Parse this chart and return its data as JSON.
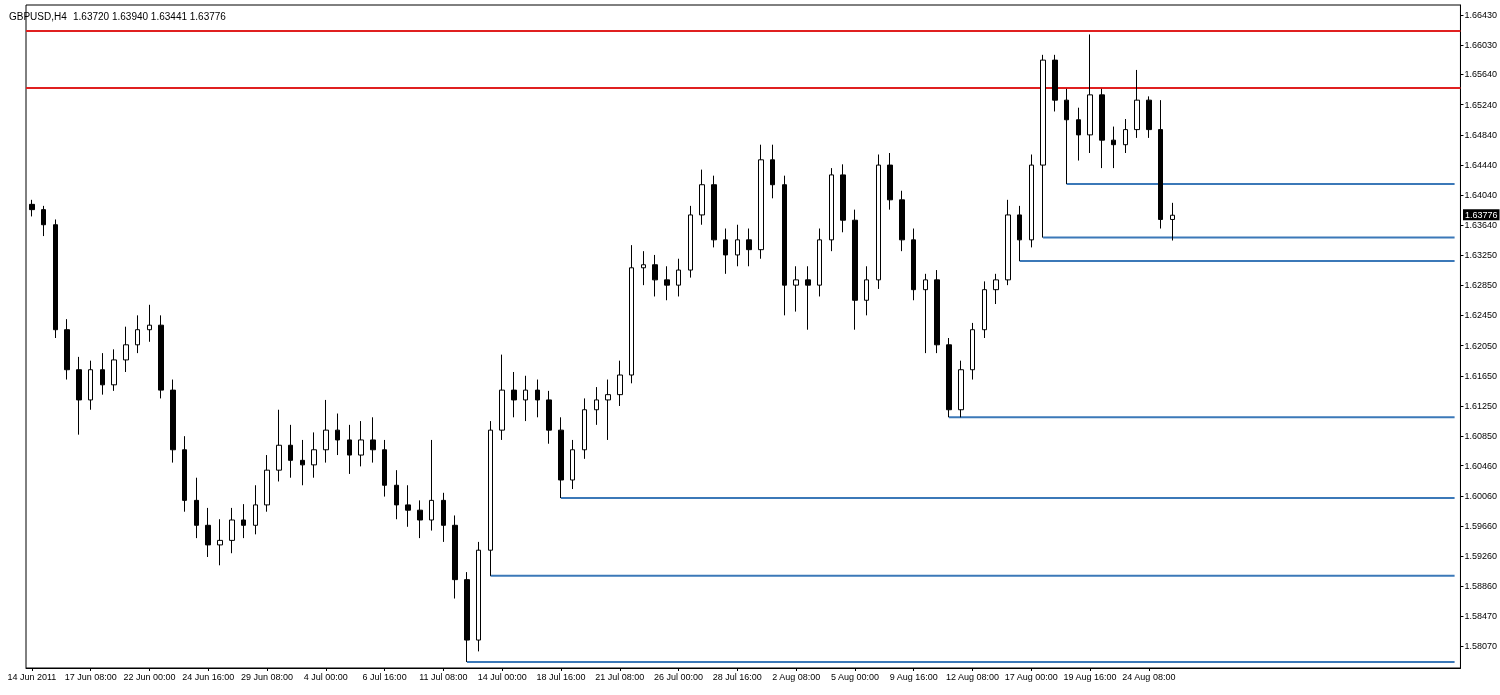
{
  "chart_data": {
    "type": "candlestick",
    "title": "GBPUSD,H4",
    "subtitle": "1.63720 1.63940 1.63441 1.63776",
    "categories": [
      "14 Jun 2011",
      null,
      null,
      null,
      null,
      "17 Jun 08:00",
      null,
      null,
      null,
      null,
      "22 Jun 00:00",
      null,
      null,
      null,
      null,
      "24 Jun 16:00",
      null,
      null,
      null,
      null,
      "29 Jun 08:00",
      null,
      null,
      null,
      null,
      "4 Jul 00:00",
      null,
      null,
      null,
      null,
      "6 Jul 16:00",
      null,
      null,
      null,
      null,
      "11 Jul 08:00",
      null,
      null,
      null,
      null,
      "14 Jul 00:00",
      null,
      null,
      null,
      null,
      "18 Jul 16:00",
      null,
      null,
      null,
      null,
      "21 Jul 08:00",
      null,
      null,
      null,
      null,
      "26 Jul 00:00",
      null,
      null,
      null,
      null,
      "28 Jul 16:00",
      null,
      null,
      null,
      null,
      "2 Aug 08:00",
      null,
      null,
      null,
      null,
      "5 Aug 00:00",
      null,
      null,
      null,
      null,
      "9 Aug 16:00",
      null,
      null,
      null,
      null,
      "12 Aug 08:00",
      null,
      null,
      null,
      null,
      "17 Aug 00:00",
      null,
      null,
      null,
      null,
      "19 Aug 16:00",
      null,
      null,
      null,
      null,
      "24 Aug 08:00",
      null,
      null,
      null,
      null,
      null,
      null,
      null,
      null,
      null,
      null,
      null,
      null,
      null,
      null,
      null,
      null,
      null,
      null,
      null,
      null,
      null,
      null,
      null,
      null,
      null,
      null
    ],
    "ohlc": [
      [
        1.6392,
        1.6398,
        1.6376,
        1.6385
      ],
      [
        1.6385,
        1.639,
        1.635,
        1.6365
      ],
      [
        1.6365,
        1.6372,
        1.6215,
        1.6226
      ],
      [
        1.6226,
        1.624,
        1.616,
        1.6173
      ],
      [
        1.6173,
        1.619,
        1.6087,
        1.6133
      ],
      [
        1.6133,
        1.6185,
        1.612,
        1.6173
      ],
      [
        1.6173,
        1.6195,
        1.614,
        1.6153
      ],
      [
        1.6153,
        1.62,
        1.6145,
        1.6186
      ],
      [
        1.6186,
        1.623,
        1.617,
        1.6206
      ],
      [
        1.6206,
        1.6245,
        1.6195,
        1.6226
      ],
      [
        1.6226,
        1.6259,
        1.621,
        1.6232
      ],
      [
        1.6232,
        1.6245,
        1.6135,
        1.6146
      ],
      [
        1.6146,
        1.616,
        1.605,
        1.6067
      ],
      [
        1.6067,
        1.6085,
        1.5985,
        1.6
      ],
      [
        1.6,
        1.603,
        1.595,
        1.5967
      ],
      [
        1.5967,
        1.599,
        1.5925,
        1.5941
      ],
      [
        1.5941,
        1.5975,
        1.5914,
        1.5947
      ],
      [
        1.5947,
        1.599,
        1.593,
        1.5974
      ],
      [
        1.5974,
        1.5995,
        1.595,
        1.5967
      ],
      [
        1.5967,
        1.602,
        1.5955,
        1.5994
      ],
      [
        1.5994,
        1.606,
        1.5985,
        1.604
      ],
      [
        1.604,
        1.612,
        1.6025,
        1.6073
      ],
      [
        1.6073,
        1.61,
        1.603,
        1.6053
      ],
      [
        1.6053,
        1.608,
        1.602,
        1.6047
      ],
      [
        1.6047,
        1.609,
        1.603,
        1.6067
      ],
      [
        1.6067,
        1.6133,
        1.605,
        1.6093
      ],
      [
        1.6093,
        1.6115,
        1.606,
        1.608
      ],
      [
        1.608,
        1.61,
        1.6035,
        1.606
      ],
      [
        1.606,
        1.6105,
        1.6045,
        1.608
      ],
      [
        1.608,
        1.611,
        1.605,
        1.6067
      ],
      [
        1.6067,
        1.608,
        1.6005,
        1.602
      ],
      [
        1.602,
        1.604,
        1.5975,
        1.5994
      ],
      [
        1.5994,
        1.602,
        1.5965,
        1.5987
      ],
      [
        1.5987,
        1.6,
        1.595,
        1.5974
      ],
      [
        1.5974,
        1.608,
        1.596,
        1.6
      ],
      [
        1.6,
        1.601,
        1.5945,
        1.5967
      ],
      [
        1.5967,
        1.598,
        1.587,
        1.5895
      ],
      [
        1.5895,
        1.5905,
        1.5786,
        1.5815
      ],
      [
        1.5815,
        1.5945,
        1.58,
        1.5934
      ],
      [
        1.5934,
        1.6105,
        1.59,
        1.6093
      ],
      [
        1.6093,
        1.6193,
        1.608,
        1.6146
      ],
      [
        1.6146,
        1.617,
        1.611,
        1.6133
      ],
      [
        1.6133,
        1.6165,
        1.6105,
        1.6146
      ],
      [
        1.6146,
        1.616,
        1.611,
        1.6133
      ],
      [
        1.6133,
        1.6145,
        1.6075,
        1.6093
      ],
      [
        1.6093,
        1.611,
        1.6003,
        1.6027
      ],
      [
        1.6027,
        1.608,
        1.6015,
        1.6067
      ],
      [
        1.6067,
        1.6135,
        1.6055,
        1.612
      ],
      [
        1.612,
        1.615,
        1.61,
        1.6133
      ],
      [
        1.6133,
        1.616,
        1.608,
        1.614
      ],
      [
        1.614,
        1.6185,
        1.6125,
        1.6166
      ],
      [
        1.6166,
        1.6338,
        1.6155,
        1.6308
      ],
      [
        1.6308,
        1.633,
        1.6285,
        1.6312
      ],
      [
        1.6312,
        1.6325,
        1.627,
        1.6292
      ],
      [
        1.6292,
        1.631,
        1.6265,
        1.6285
      ],
      [
        1.6285,
        1.632,
        1.627,
        1.6305
      ],
      [
        1.6305,
        1.639,
        1.6295,
        1.6378
      ],
      [
        1.6378,
        1.6438,
        1.6365,
        1.6418
      ],
      [
        1.6418,
        1.643,
        1.6335,
        1.6345
      ],
      [
        1.6345,
        1.636,
        1.63,
        1.6325
      ],
      [
        1.6325,
        1.6365,
        1.631,
        1.6345
      ],
      [
        1.6345,
        1.636,
        1.631,
        1.6332
      ],
      [
        1.6332,
        1.6471,
        1.632,
        1.6451
      ],
      [
        1.6451,
        1.6471,
        1.64,
        1.6418
      ],
      [
        1.6418,
        1.643,
        1.6245,
        1.6285
      ],
      [
        1.6285,
        1.631,
        1.625,
        1.6292
      ],
      [
        1.6292,
        1.631,
        1.6226,
        1.6285
      ],
      [
        1.6285,
        1.636,
        1.627,
        1.6345
      ],
      [
        1.6345,
        1.644,
        1.633,
        1.6431
      ],
      [
        1.6431,
        1.6445,
        1.6355,
        1.6371
      ],
      [
        1.6371,
        1.6385,
        1.6226,
        1.6265
      ],
      [
        1.6265,
        1.631,
        1.6245,
        1.6292
      ],
      [
        1.6292,
        1.6458,
        1.628,
        1.6444
      ],
      [
        1.6444,
        1.646,
        1.6385,
        1.6398
      ],
      [
        1.6398,
        1.641,
        1.633,
        1.6345
      ],
      [
        1.6345,
        1.636,
        1.6265,
        1.6279
      ],
      [
        1.6279,
        1.63,
        1.6195,
        1.6292
      ],
      [
        1.6292,
        1.6305,
        1.6195,
        1.6206
      ],
      [
        1.6206,
        1.6215,
        1.611,
        1.612
      ],
      [
        1.612,
        1.6185,
        1.611,
        1.6173
      ],
      [
        1.6173,
        1.6235,
        1.616,
        1.6226
      ],
      [
        1.6226,
        1.629,
        1.6215,
        1.6279
      ],
      [
        1.6279,
        1.63,
        1.626,
        1.6292
      ],
      [
        1.6292,
        1.6398,
        1.6285,
        1.6378
      ],
      [
        1.6378,
        1.639,
        1.6317,
        1.6345
      ],
      [
        1.6345,
        1.6458,
        1.6335,
        1.6444
      ],
      [
        1.6444,
        1.659,
        1.6348,
        1.6583
      ],
      [
        1.6583,
        1.659,
        1.6515,
        1.653
      ],
      [
        1.653,
        1.6545,
        1.6419,
        1.6504
      ],
      [
        1.6504,
        1.652,
        1.645,
        1.6484
      ],
      [
        1.6484,
        1.6617,
        1.646,
        1.6537
      ],
      [
        1.6537,
        1.6545,
        1.644,
        1.6477
      ],
      [
        1.6477,
        1.6495,
        1.644,
        1.6471
      ],
      [
        1.6471,
        1.6505,
        1.646,
        1.6491
      ],
      [
        1.6491,
        1.657,
        1.648,
        1.653
      ],
      [
        1.653,
        1.6535,
        1.648,
        1.6491
      ],
      [
        1.6491,
        1.653,
        1.636,
        1.6372
      ],
      [
        1.6372,
        1.6394,
        1.63441,
        1.63776
      ],
      null,
      null,
      null,
      null,
      null,
      null,
      null,
      null,
      null,
      null,
      null,
      null,
      null,
      null,
      null,
      null,
      null,
      null,
      null,
      null,
      null,
      null,
      null,
      null
    ],
    "color": "#000000",
    "series": [
      {
        "type": "line",
        "color": "#3b78b8",
        "values": [
          null,
          null,
          null,
          null,
          null,
          null,
          null,
          null,
          null,
          null,
          null,
          null,
          null,
          null,
          null,
          null,
          null,
          null,
          null,
          null,
          null,
          null,
          null,
          null,
          null,
          null,
          null,
          null,
          null,
          null,
          null,
          null,
          null,
          null,
          null,
          null,
          null,
          1.5786,
          null,
          null,
          null,
          null,
          null,
          null,
          null,
          null,
          null,
          null,
          null,
          null,
          null,
          null,
          null,
          null,
          null,
          null,
          null,
          null,
          null,
          null,
          null,
          null,
          null,
          null,
          null,
          null,
          null,
          null,
          null,
          null,
          null,
          null,
          null,
          null,
          null,
          null,
          null,
          null,
          null,
          null,
          null,
          null,
          null,
          null,
          null,
          null,
          null,
          null,
          null,
          null,
          null,
          null,
          null,
          null,
          null,
          null,
          null,
          null,
          null,
          null,
          null,
          null,
          null,
          null,
          null,
          null,
          null,
          null,
          null,
          null,
          null,
          null,
          null,
          null,
          null,
          null,
          null,
          null,
          null,
          null,
          null,
          1.5786
        ]
      },
      {
        "type": "line",
        "color": "#3b78b8",
        "values": [
          null,
          null,
          null,
          null,
          null,
          null,
          null,
          null,
          null,
          null,
          null,
          null,
          null,
          null,
          null,
          null,
          null,
          null,
          null,
          null,
          null,
          null,
          null,
          null,
          null,
          null,
          null,
          null,
          null,
          null,
          null,
          null,
          null,
          null,
          null,
          null,
          null,
          null,
          null,
          1.59,
          null,
          null,
          null,
          null,
          null,
          null,
          null,
          null,
          null,
          null,
          null,
          null,
          null,
          null,
          null,
          null,
          null,
          null,
          null,
          null,
          null,
          null,
          null,
          null,
          null,
          null,
          null,
          null,
          null,
          null,
          null,
          null,
          null,
          null,
          null,
          null,
          null,
          null,
          null,
          null,
          null,
          null,
          null,
          null,
          null,
          null,
          null,
          null,
          null,
          null,
          null,
          null,
          null,
          null,
          null,
          null,
          null,
          null,
          null,
          null,
          null,
          null,
          null,
          null,
          null,
          null,
          null,
          null,
          null,
          null,
          null,
          null,
          null,
          null,
          null,
          null,
          null,
          null,
          null,
          null,
          null,
          1.59
        ]
      },
      {
        "type": "line",
        "color": "#3b78b8",
        "values": [
          null,
          null,
          null,
          null,
          null,
          null,
          null,
          null,
          null,
          null,
          null,
          null,
          null,
          null,
          null,
          null,
          null,
          null,
          null,
          null,
          null,
          null,
          null,
          null,
          null,
          null,
          null,
          null,
          null,
          null,
          null,
          null,
          null,
          null,
          null,
          null,
          null,
          null,
          null,
          null,
          null,
          null,
          null,
          null,
          null,
          1.6003,
          null,
          null,
          null,
          null,
          null,
          null,
          null,
          null,
          null,
          null,
          null,
          null,
          null,
          null,
          null,
          null,
          null,
          null,
          null,
          null,
          null,
          null,
          null,
          null,
          null,
          null,
          null,
          null,
          null,
          null,
          null,
          null,
          null,
          null,
          null,
          null,
          null,
          null,
          null,
          null,
          null,
          null,
          null,
          null,
          null,
          null,
          null,
          null,
          null,
          null,
          null,
          null,
          null,
          null,
          null,
          null,
          null,
          null,
          null,
          null,
          null,
          null,
          null,
          null,
          null,
          null,
          null,
          null,
          null,
          null,
          null,
          null,
          null,
          null,
          null,
          1.6003
        ]
      },
      {
        "type": "line",
        "color": "#3b78b8",
        "values": [
          null,
          null,
          null,
          null,
          null,
          null,
          null,
          null,
          null,
          null,
          null,
          null,
          null,
          null,
          null,
          null,
          null,
          null,
          null,
          null,
          null,
          null,
          null,
          null,
          null,
          null,
          null,
          null,
          null,
          null,
          null,
          null,
          null,
          null,
          null,
          null,
          null,
          null,
          null,
          null,
          null,
          null,
          null,
          null,
          null,
          null,
          null,
          null,
          null,
          null,
          null,
          null,
          null,
          null,
          null,
          null,
          null,
          null,
          null,
          null,
          null,
          null,
          null,
          null,
          null,
          null,
          null,
          null,
          null,
          null,
          null,
          null,
          null,
          null,
          null,
          null,
          null,
          null,
          1.611,
          null,
          null,
          null,
          null,
          null,
          null,
          null,
          null,
          null,
          null,
          null,
          null,
          null,
          null,
          null,
          null,
          null,
          null,
          null,
          null,
          null,
          null,
          null,
          null,
          null,
          null,
          null,
          null,
          null,
          null,
          null,
          null,
          null,
          null,
          null,
          null,
          null,
          null,
          null,
          null,
          null,
          null,
          1.611
        ]
      },
      {
        "type": "line",
        "color": "#3b78b8",
        "values": [
          null,
          null,
          null,
          null,
          null,
          null,
          null,
          null,
          null,
          null,
          null,
          null,
          null,
          null,
          null,
          null,
          null,
          null,
          null,
          null,
          null,
          null,
          null,
          null,
          null,
          null,
          null,
          null,
          null,
          null,
          null,
          null,
          null,
          null,
          null,
          null,
          null,
          null,
          null,
          null,
          null,
          null,
          null,
          null,
          null,
          null,
          null,
          null,
          null,
          null,
          null,
          null,
          null,
          null,
          null,
          null,
          null,
          null,
          null,
          null,
          null,
          null,
          null,
          null,
          null,
          null,
          null,
          null,
          null,
          null,
          null,
          null,
          null,
          null,
          null,
          null,
          null,
          null,
          null,
          null,
          null,
          null,
          null,
          null,
          1.6317,
          null,
          null,
          null,
          null,
          null,
          null,
          null,
          null,
          null,
          null,
          null,
          null,
          null,
          null,
          null,
          null,
          null,
          null,
          null,
          null,
          null,
          null,
          null,
          null,
          null,
          null,
          null,
          null,
          null,
          null,
          null,
          null,
          null,
          null,
          null,
          null,
          1.6317
        ]
      },
      {
        "type": "line",
        "color": "#3b78b8",
        "values": [
          null,
          null,
          null,
          null,
          null,
          null,
          null,
          null,
          null,
          null,
          null,
          null,
          null,
          null,
          null,
          null,
          null,
          null,
          null,
          null,
          null,
          null,
          null,
          null,
          null,
          null,
          null,
          null,
          null,
          null,
          null,
          null,
          null,
          null,
          null,
          null,
          null,
          null,
          null,
          null,
          null,
          null,
          null,
          null,
          null,
          null,
          null,
          null,
          null,
          null,
          null,
          null,
          null,
          null,
          null,
          null,
          null,
          null,
          null,
          null,
          null,
          null,
          null,
          null,
          null,
          null,
          null,
          null,
          null,
          null,
          null,
          null,
          null,
          null,
          null,
          null,
          null,
          null,
          null,
          null,
          null,
          null,
          null,
          null,
          null,
          null,
          1.6348,
          null,
          null,
          null,
          null,
          null,
          null,
          null,
          null,
          null,
          null,
          null,
          null,
          null,
          null,
          null,
          null,
          null,
          null,
          null,
          null,
          null,
          null,
          null,
          null,
          null,
          null,
          null,
          null,
          null,
          null,
          null,
          null,
          null,
          null,
          1.6348
        ]
      },
      {
        "type": "line",
        "color": "#3b78b8",
        "values": [
          null,
          null,
          null,
          null,
          null,
          null,
          null,
          null,
          null,
          null,
          null,
          null,
          null,
          null,
          null,
          null,
          null,
          null,
          null,
          null,
          null,
          null,
          null,
          null,
          null,
          null,
          null,
          null,
          null,
          null,
          null,
          null,
          null,
          null,
          null,
          null,
          null,
          null,
          null,
          null,
          null,
          null,
          null,
          null,
          null,
          null,
          null,
          null,
          null,
          null,
          null,
          null,
          null,
          null,
          null,
          null,
          null,
          null,
          null,
          null,
          null,
          null,
          null,
          null,
          null,
          null,
          null,
          null,
          null,
          null,
          null,
          null,
          null,
          null,
          null,
          null,
          null,
          null,
          null,
          null,
          null,
          null,
          null,
          null,
          null,
          null,
          null,
          null,
          1.6419,
          null,
          null,
          null,
          null,
          null,
          null,
          null,
          null,
          null,
          null,
          null,
          null,
          null,
          null,
          null,
          null,
          null,
          null,
          null,
          null,
          null,
          null,
          null,
          null,
          null,
          null,
          null,
          null,
          null,
          null,
          null,
          null,
          1.6419
        ]
      }
    ],
    "ref_lines": [
      {
        "axis": "y",
        "value": 1.6622,
        "color": "#e02020"
      },
      {
        "axis": "y",
        "value": 1.6546,
        "color": "#e02020"
      }
    ],
    "annotations": [
      {
        "text": "1.63776",
        "y": 1.63776
      }
    ],
    "marker": "none",
    "ylim": [
      1.5778,
      1.6656
    ],
    "yticks": [
      {
        "value": 1.6643,
        "label": "1.66430"
      },
      {
        "value": 1.6603,
        "label": "1.66030"
      },
      {
        "value": 1.6564,
        "label": "1.65640"
      },
      {
        "value": 1.6524,
        "label": "1.65240"
      },
      {
        "value": 1.6484,
        "label": "1.64840"
      },
      {
        "value": 1.6444,
        "label": "1.64440"
      },
      {
        "value": 1.6404,
        "label": "1.64040"
      },
      {
        "value": 1.6364,
        "label": "1.63640"
      },
      {
        "value": 1.6325,
        "label": "1.63250"
      },
      {
        "value": 1.6285,
        "label": "1.62850"
      },
      {
        "value": 1.6245,
        "label": "1.62450"
      },
      {
        "value": 1.6205,
        "label": "1.62050"
      },
      {
        "value": 1.6165,
        "label": "1.61650"
      },
      {
        "value": 1.6125,
        "label": "1.61250"
      },
      {
        "value": 1.6085,
        "label": "1.60850"
      },
      {
        "value": 1.6046,
        "label": "1.60460"
      },
      {
        "value": 1.6006,
        "label": "1.60060"
      },
      {
        "value": 1.5966,
        "label": "1.59660"
      },
      {
        "value": 1.5926,
        "label": "1.59260"
      },
      {
        "value": 1.5886,
        "label": "1.58860"
      },
      {
        "value": 1.5847,
        "label": "1.58470"
      },
      {
        "value": 1.5807,
        "label": "1.58070"
      }
    ]
  }
}
